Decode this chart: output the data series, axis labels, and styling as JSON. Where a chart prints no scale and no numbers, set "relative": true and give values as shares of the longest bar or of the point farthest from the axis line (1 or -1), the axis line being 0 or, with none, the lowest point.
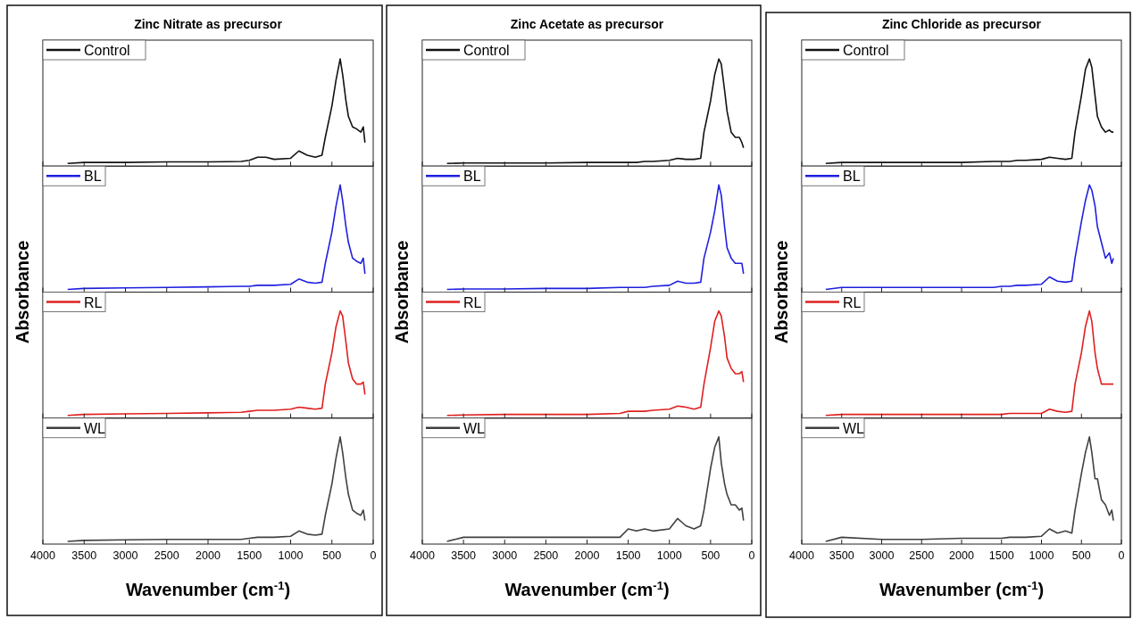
{
  "chart_data": [
    {
      "type": "line",
      "title": "Zinc Nitrate as precursor",
      "ylabel": "Absorbance",
      "relative": true,
      "xlim": [
        4000,
        0
      ],
      "xticks": [
        4000,
        3500,
        3000,
        2500,
        2000,
        1500,
        1000,
        500,
        0
      ],
      "tick_labels": false,
      "legend": "top left",
      "x": [
        3700,
        3500,
        3000,
        2500,
        2000,
        1600,
        1500,
        1400,
        1300,
        1200,
        1000,
        900,
        800,
        700,
        620,
        580,
        500,
        450,
        400,
        370,
        330,
        300,
        250,
        200,
        150,
        120,
        100
      ],
      "series": [
        {
          "name": "Control",
          "color": "#111111",
          "values": [
            0,
            0.01,
            0.01,
            0.015,
            0.015,
            0.02,
            0.03,
            0.06,
            0.06,
            0.04,
            0.05,
            0.12,
            0.08,
            0.06,
            0.08,
            0.25,
            0.55,
            0.8,
            1,
            0.85,
            0.6,
            0.45,
            0.35,
            0.33,
            0.3,
            0.35,
            0.2
          ]
        }
      ]
    },
    {
      "type": "line",
      "relative": true,
      "xlim": [
        4000,
        0
      ],
      "xticks": [
        4000,
        3500,
        3000,
        2500,
        2000,
        1500,
        1000,
        500,
        0
      ],
      "tick_labels": false,
      "legend": "top left",
      "x": [
        3700,
        3500,
        3000,
        2500,
        2000,
        1600,
        1500,
        1400,
        1300,
        1200,
        1000,
        900,
        800,
        700,
        620,
        580,
        500,
        450,
        400,
        370,
        330,
        300,
        250,
        200,
        150,
        120,
        100
      ],
      "series": [
        {
          "name": "BL",
          "color": "#1f1fe0",
          "values": [
            0,
            0.01,
            0.015,
            0.02,
            0.025,
            0.03,
            0.03,
            0.04,
            0.04,
            0.04,
            0.05,
            0.1,
            0.07,
            0.06,
            0.07,
            0.25,
            0.55,
            0.8,
            1,
            0.85,
            0.6,
            0.45,
            0.3,
            0.27,
            0.25,
            0.3,
            0.15
          ]
        }
      ]
    },
    {
      "type": "line",
      "relative": true,
      "xlim": [
        4000,
        0
      ],
      "xticks": [
        4000,
        3500,
        3000,
        2500,
        2000,
        1500,
        1000,
        500,
        0
      ],
      "tick_labels": false,
      "legend": "top left",
      "x": [
        3700,
        3500,
        3000,
        2500,
        2000,
        1600,
        1500,
        1400,
        1300,
        1200,
        1000,
        900,
        800,
        700,
        620,
        580,
        500,
        450,
        400,
        370,
        330,
        300,
        250,
        200,
        150,
        120,
        100
      ],
      "series": [
        {
          "name": "RL",
          "color": "#e01f1f",
          "values": [
            0,
            0.01,
            0.015,
            0.02,
            0.025,
            0.03,
            0.04,
            0.05,
            0.05,
            0.05,
            0.06,
            0.08,
            0.07,
            0.06,
            0.07,
            0.3,
            0.6,
            0.85,
            1,
            0.95,
            0.7,
            0.5,
            0.35,
            0.3,
            0.3,
            0.32,
            0.2
          ]
        }
      ]
    },
    {
      "type": "line",
      "xlabel": "Wavenumber (cm$^{-1}$)",
      "relative": true,
      "xlim": [
        4000,
        0
      ],
      "xticks": [
        4000,
        3500,
        3000,
        2500,
        2000,
        1500,
        1000,
        500,
        0
      ],
      "tick_labels": "x",
      "legend": "top left",
      "x": [
        3700,
        3500,
        3000,
        2500,
        2000,
        1600,
        1500,
        1400,
        1300,
        1200,
        1000,
        900,
        800,
        700,
        620,
        580,
        500,
        450,
        400,
        370,
        330,
        300,
        250,
        200,
        150,
        120,
        100
      ],
      "series": [
        {
          "name": "WL",
          "color": "#404040",
          "values": [
            0,
            0.01,
            0.015,
            0.02,
            0.02,
            0.02,
            0.03,
            0.04,
            0.04,
            0.04,
            0.05,
            0.1,
            0.07,
            0.06,
            0.07,
            0.25,
            0.55,
            0.8,
            1,
            0.85,
            0.6,
            0.45,
            0.3,
            0.27,
            0.25,
            0.3,
            0.2
          ]
        }
      ]
    },
    {
      "type": "line",
      "title": "Zinc Acetate as precursor",
      "ylabel": "Absorbance",
      "relative": true,
      "xlim": [
        4000,
        0
      ],
      "xticks": [
        4000,
        3500,
        3000,
        2500,
        2000,
        1500,
        1000,
        500,
        0
      ],
      "tick_labels": false,
      "legend": "top left",
      "x": [
        3700,
        3500,
        3000,
        2500,
        2000,
        1600,
        1500,
        1400,
        1300,
        1200,
        1000,
        900,
        800,
        700,
        620,
        580,
        500,
        450,
        400,
        370,
        330,
        300,
        250,
        200,
        150,
        120,
        100
      ],
      "series": [
        {
          "name": "Control",
          "color": "#111111",
          "values": [
            0,
            0.005,
            0.005,
            0.005,
            0.01,
            0.01,
            0.01,
            0.01,
            0.02,
            0.02,
            0.03,
            0.05,
            0.04,
            0.04,
            0.05,
            0.3,
            0.6,
            0.85,
            1,
            0.95,
            0.7,
            0.5,
            0.3,
            0.25,
            0.25,
            0.2,
            0.15
          ]
        }
      ]
    },
    {
      "type": "line",
      "relative": true,
      "xlim": [
        4000,
        0
      ],
      "xticks": [
        4000,
        3500,
        3000,
        2500,
        2000,
        1500,
        1000,
        500,
        0
      ],
      "tick_labels": false,
      "legend": "top left",
      "x": [
        3700,
        3500,
        3000,
        2500,
        2000,
        1600,
        1500,
        1400,
        1300,
        1200,
        1000,
        900,
        800,
        700,
        620,
        580,
        500,
        450,
        400,
        370,
        330,
        300,
        250,
        200,
        150,
        120,
        100
      ],
      "series": [
        {
          "name": "BL",
          "color": "#1f1fe0",
          "values": [
            0,
            0.005,
            0.005,
            0.01,
            0.01,
            0.02,
            0.02,
            0.02,
            0.02,
            0.03,
            0.04,
            0.08,
            0.06,
            0.06,
            0.07,
            0.3,
            0.55,
            0.75,
            1,
            0.9,
            0.6,
            0.4,
            0.3,
            0.25,
            0.25,
            0.25,
            0.15
          ]
        }
      ]
    },
    {
      "type": "line",
      "relative": true,
      "xlim": [
        4000,
        0
      ],
      "xticks": [
        4000,
        3500,
        3000,
        2500,
        2000,
        1500,
        1000,
        500,
        0
      ],
      "tick_labels": false,
      "legend": "top left",
      "x": [
        3700,
        3500,
        3000,
        2500,
        2000,
        1600,
        1500,
        1400,
        1300,
        1200,
        1000,
        900,
        800,
        700,
        620,
        580,
        500,
        450,
        400,
        370,
        330,
        300,
        250,
        200,
        150,
        120,
        100
      ],
      "series": [
        {
          "name": "RL",
          "color": "#e01f1f",
          "values": [
            0,
            0.005,
            0.01,
            0.01,
            0.01,
            0.02,
            0.04,
            0.04,
            0.04,
            0.05,
            0.06,
            0.09,
            0.08,
            0.06,
            0.08,
            0.3,
            0.65,
            0.9,
            1,
            0.95,
            0.75,
            0.55,
            0.45,
            0.4,
            0.4,
            0.42,
            0.32
          ]
        }
      ]
    },
    {
      "type": "line",
      "xlabel": "Wavenumber (cm$^{-1}$)",
      "relative": true,
      "xlim": [
        4000,
        0
      ],
      "xticks": [
        4000,
        3500,
        3000,
        2500,
        2000,
        1500,
        1000,
        500,
        0
      ],
      "tick_labels": "x",
      "legend": "top left",
      "x": [
        3700,
        3500,
        3000,
        2500,
        2000,
        1600,
        1500,
        1400,
        1300,
        1200,
        1000,
        900,
        800,
        700,
        620,
        580,
        500,
        450,
        400,
        370,
        330,
        300,
        250,
        200,
        150,
        120,
        100
      ],
      "series": [
        {
          "name": "WL",
          "color": "#404040",
          "values": [
            0,
            0.04,
            0.04,
            0.04,
            0.04,
            0.04,
            0.12,
            0.1,
            0.12,
            0.1,
            0.12,
            0.22,
            0.15,
            0.12,
            0.15,
            0.3,
            0.7,
            0.9,
            1,
            0.75,
            0.55,
            0.45,
            0.35,
            0.35,
            0.3,
            0.32,
            0.2
          ]
        }
      ]
    },
    {
      "type": "line",
      "title": "Zinc Chloride as precursor",
      "ylabel": "Absorbance",
      "relative": true,
      "xlim": [
        4000,
        0
      ],
      "xticks": [
        4000,
        3500,
        3000,
        2500,
        2000,
        1500,
        1000,
        500,
        0
      ],
      "tick_labels": false,
      "legend": "top left",
      "x": [
        3700,
        3500,
        3000,
        2500,
        2000,
        1600,
        1500,
        1400,
        1300,
        1200,
        1000,
        900,
        800,
        700,
        620,
        580,
        500,
        450,
        400,
        370,
        330,
        300,
        250,
        200,
        150,
        120,
        100
      ],
      "series": [
        {
          "name": "Control",
          "color": "#111111",
          "values": [
            0,
            0.01,
            0.01,
            0.01,
            0.01,
            0.02,
            0.02,
            0.02,
            0.03,
            0.03,
            0.04,
            0.06,
            0.05,
            0.04,
            0.05,
            0.3,
            0.65,
            0.9,
            1,
            0.92,
            0.65,
            0.45,
            0.35,
            0.3,
            0.32,
            0.3,
            0.3
          ]
        }
      ]
    },
    {
      "type": "line",
      "relative": true,
      "xlim": [
        4000,
        0
      ],
      "xticks": [
        4000,
        3500,
        3000,
        2500,
        2000,
        1500,
        1000,
        500,
        0
      ],
      "tick_labels": false,
      "legend": "top left",
      "x": [
        3700,
        3500,
        3000,
        2500,
        2000,
        1600,
        1500,
        1400,
        1300,
        1200,
        1000,
        900,
        800,
        700,
        620,
        580,
        500,
        450,
        400,
        370,
        330,
        300,
        250,
        200,
        150,
        120,
        100
      ],
      "series": [
        {
          "name": "BL",
          "color": "#1f1fe0",
          "values": [
            0,
            0.02,
            0.02,
            0.02,
            0.02,
            0.02,
            0.03,
            0.03,
            0.04,
            0.04,
            0.05,
            0.12,
            0.08,
            0.07,
            0.08,
            0.3,
            0.65,
            0.85,
            1,
            0.95,
            0.8,
            0.6,
            0.45,
            0.3,
            0.35,
            0.25,
            0.3
          ]
        }
      ]
    },
    {
      "type": "line",
      "relative": true,
      "xlim": [
        4000,
        0
      ],
      "xticks": [
        4000,
        3500,
        3000,
        2500,
        2000,
        1500,
        1000,
        500,
        0
      ],
      "tick_labels": false,
      "legend": "top left",
      "x": [
        3700,
        3500,
        3000,
        2500,
        2000,
        1600,
        1500,
        1400,
        1300,
        1200,
        1000,
        900,
        800,
        700,
        620,
        580,
        500,
        450,
        400,
        370,
        330,
        300,
        250,
        200,
        150,
        120,
        100
      ],
      "series": [
        {
          "name": "RL",
          "color": "#e01f1f",
          "values": [
            0,
            0.01,
            0.01,
            0.01,
            0.01,
            0.01,
            0.01,
            0.02,
            0.02,
            0.02,
            0.02,
            0.06,
            0.04,
            0.03,
            0.04,
            0.3,
            0.6,
            0.85,
            1,
            0.9,
            0.6,
            0.45,
            0.3,
            0.3,
            0.3,
            0.3,
            0.3
          ]
        }
      ]
    },
    {
      "type": "line",
      "xlabel": "Wavenumber (cm$^{-1}$)",
      "relative": true,
      "xlim": [
        4000,
        0
      ],
      "xticks": [
        4000,
        3500,
        3000,
        2500,
        2000,
        1500,
        1000,
        500,
        0
      ],
      "tick_labels": "x",
      "legend": "top left",
      "x": [
        3700,
        3500,
        3000,
        2500,
        2000,
        1600,
        1500,
        1400,
        1300,
        1200,
        1000,
        900,
        800,
        700,
        620,
        580,
        500,
        450,
        400,
        370,
        330,
        300,
        250,
        200,
        150,
        120,
        100
      ],
      "series": [
        {
          "name": "WL",
          "color": "#404040",
          "values": [
            0,
            0.04,
            0.02,
            0.02,
            0.03,
            0.03,
            0.03,
            0.04,
            0.04,
            0.04,
            0.05,
            0.12,
            0.08,
            0.1,
            0.08,
            0.3,
            0.65,
            0.85,
            1,
            0.85,
            0.6,
            0.6,
            0.4,
            0.35,
            0.25,
            0.3,
            0.2
          ]
        }
      ]
    }
  ]
}
